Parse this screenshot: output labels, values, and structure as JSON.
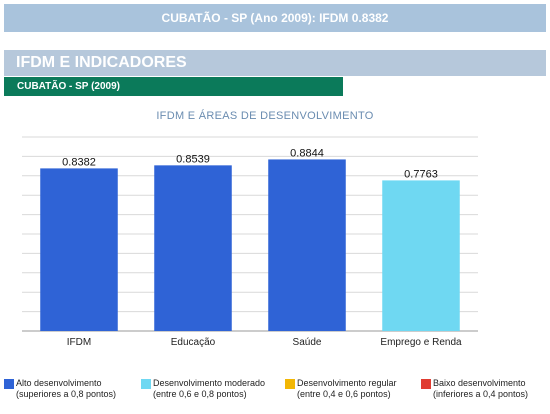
{
  "banner": {
    "title": "CUBATÃO - SP (Ano 2009): IFDM 0.8382"
  },
  "section": {
    "title": "IFDM E INDICADORES"
  },
  "subsection": {
    "title": "CUBATÃO - SP (2009)"
  },
  "chart_data": {
    "type": "bar",
    "title": "IFDM E ÁREAS DE DESENVOLVIMENTO",
    "categories": [
      "IFDM",
      "Educação",
      "Saúde",
      "Emprego e Renda"
    ],
    "values": [
      0.8382,
      0.8539,
      0.8844,
      0.7763
    ],
    "value_labels": [
      "0.8382",
      "0.8539",
      "0.8844",
      "0.7763"
    ],
    "bar_colors": [
      "#2f63d6",
      "#2f63d6",
      "#2f63d6",
      "#6fd8f2"
    ],
    "ylim": [
      0,
      1
    ],
    "grid": true,
    "xlabel": "",
    "ylabel": ""
  },
  "legend": [
    {
      "color": "#2f63d6",
      "line1": "Alto desenvolvimento",
      "line2": "(superiores a 0,8 pontos)"
    },
    {
      "color": "#6fd8f2",
      "line1": "Desenvolvimento moderado",
      "line2": "(entre 0,6 e 0,8 pontos)"
    },
    {
      "color": "#f2b705",
      "line1": "Desenvolvimento regular",
      "line2": "(entre 0,4 e 0,6 pontos)"
    },
    {
      "color": "#e03c31",
      "line1": "Baixo desenvolvimento",
      "line2": "(inferiores a 0,4 pontos)"
    }
  ]
}
